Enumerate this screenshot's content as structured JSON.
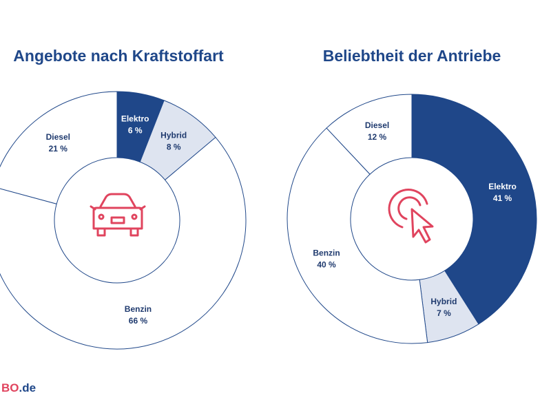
{
  "chart_data": [
    {
      "type": "donut",
      "title": "Angebote nach Kraftstoffart",
      "categories": [
        "Elektro",
        "Hybrid",
        "Benzin",
        "Diesel"
      ],
      "values": [
        6,
        8,
        66,
        21
      ],
      "value_labels": [
        "6 %",
        "8 %",
        "66 %",
        "21 %"
      ],
      "colors": [
        "#1f4789",
        "#dee4f0",
        "#ffffff",
        "#ffffff"
      ]
    },
    {
      "type": "donut",
      "title": "Beliebtheit der Antriebe",
      "categories": [
        "Elektro",
        "Hybrid",
        "Benzin",
        "Diesel"
      ],
      "values": [
        41,
        7,
        40,
        12
      ],
      "value_labels": [
        "41 %",
        "7 %",
        "40 %",
        "12 %"
      ],
      "colors": [
        "#1f4789",
        "#dee4f0",
        "#ffffff",
        "#ffffff"
      ]
    }
  ],
  "logo": {
    "brand": "BO",
    "domain": ".de"
  }
}
